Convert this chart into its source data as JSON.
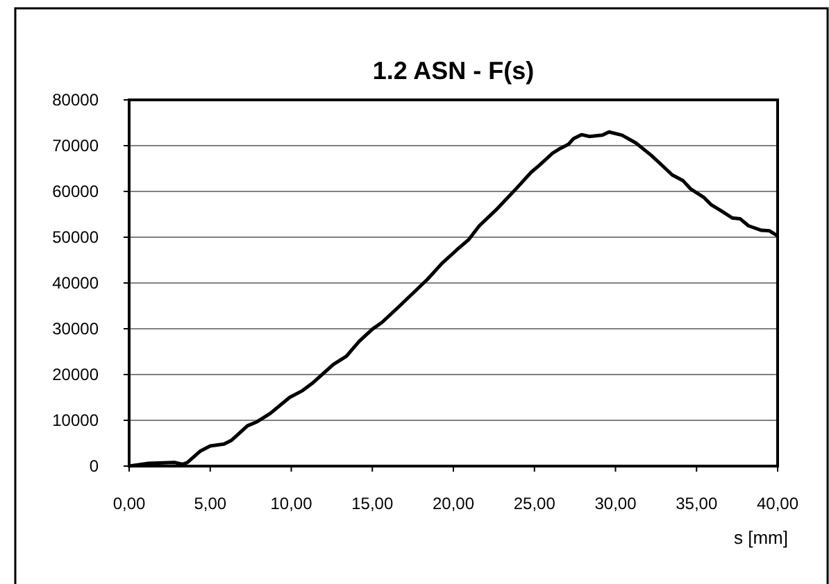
{
  "chart_data": {
    "type": "line",
    "title": "1.2 ASN - F(s)",
    "xlabel": "s [mm]",
    "xlim": [
      0,
      40
    ],
    "xticks": [
      {
        "value": 0,
        "label": "0,00"
      },
      {
        "value": 5,
        "label": "5,00"
      },
      {
        "value": 10,
        "label": "10,00"
      },
      {
        "value": 15,
        "label": "15,00"
      },
      {
        "value": 20,
        "label": "20,00"
      },
      {
        "value": 25,
        "label": "25,00"
      },
      {
        "value": 30,
        "label": "30,00"
      },
      {
        "value": 35,
        "label": "35,00"
      },
      {
        "value": 40,
        "label": "40,00"
      }
    ],
    "ylim": [
      0,
      80000
    ],
    "yticks": [
      0,
      10000,
      20000,
      30000,
      40000,
      50000,
      60000,
      70000,
      80000
    ],
    "grid": "y",
    "line_style": "solid",
    "marker": "none",
    "series": [
      {
        "color": "#000000",
        "x": [
          0,
          1.2,
          1.8,
          2.8,
          3.3,
          3.6,
          4.4,
          5.0,
          5.85,
          6.3,
          7.3,
          7.9,
          8.7,
          9.9,
          10.7,
          11.3,
          12.6,
          13.4,
          14.2,
          15.0,
          15.6,
          16.6,
          18.4,
          19.3,
          20.2,
          20.95,
          21.6,
          22.7,
          23.9,
          24.8,
          25.3,
          26.1,
          26.6,
          27.1,
          27.4,
          27.9,
          28.4,
          29.2,
          29.6,
          30.4,
          31.25,
          32.2,
          32.9,
          33.5,
          34.15,
          34.65,
          35.45,
          35.9,
          36.6,
          37.2,
          37.7,
          38.2,
          39.0,
          39.5,
          40.0
        ],
        "values": [
          0,
          600,
          700,
          800,
          400,
          800,
          3300,
          4400,
          4800,
          5600,
          8800,
          9700,
          11500,
          15000,
          16500,
          18100,
          22200,
          24000,
          27300,
          29900,
          31400,
          34700,
          40800,
          44300,
          47200,
          49500,
          52500,
          56200,
          60700,
          64200,
          65700,
          68300,
          69400,
          70300,
          71500,
          72400,
          72000,
          72300,
          73000,
          72300,
          70600,
          67900,
          65600,
          63600,
          62400,
          60500,
          58700,
          57100,
          55600,
          54200,
          54000,
          52500,
          51500,
          51400,
          50300
        ]
      }
    ]
  }
}
